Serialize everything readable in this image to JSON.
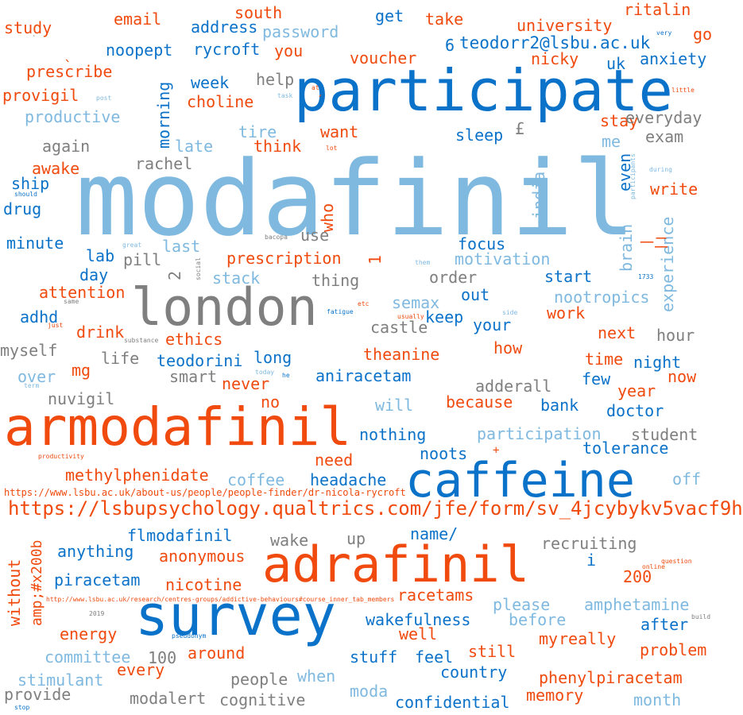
{
  "palette": {
    "light_blue": "#7fb9e0",
    "dark_blue": "#0b72c9",
    "orange": "#f04a0e",
    "gray": "#7f7f7f"
  },
  "words": [
    "modafinil",
    "participate",
    "armodafinil",
    "adrafinil",
    "survey",
    "caffeine",
    "london",
    "https://lsbupsychology.qualtrics.com/jfe/form/sv_4jcybykv5vacf9h",
    "https://www.lsbu.ac.uk/about-us/people/people-finder/dr-nicola-rycroft",
    "http://www.lsbu.ac.uk/research/centres-groups/addictive-behaviours#course_inner_tab_members",
    "teodorr2@lsbu.ac.uk",
    "study",
    "email",
    "south",
    "get",
    "take",
    "university",
    "ritalin",
    "go",
    "address",
    "password",
    "noopept",
    "rycroft",
    "you",
    "6",
    "voucher",
    "nicky",
    "uk",
    "anxiety",
    "prescribe",
    "provigil",
    "help",
    "week",
    "choline",
    "morning",
    "productive",
    "stay",
    "everyday",
    "tire",
    "want",
    "sleep",
    "£",
    "exam",
    "me",
    "again",
    "late",
    "think",
    "awake",
    "rachel",
    "even",
    "ship",
    "drug",
    "india",
    "write",
    "who",
    "brain",
    "experience",
    "minute",
    "last",
    "use",
    "focus",
    "lab",
    "pill",
    "prescription",
    "1",
    "motivation",
    "day",
    "2",
    "stack",
    "thing",
    "order",
    "start",
    "attention",
    "semax",
    "out",
    "nootropics",
    "work",
    "adhd",
    "keep",
    "castle",
    "your",
    "drink",
    "ethics",
    "next",
    "hour",
    "myself",
    "how",
    "life",
    "teodorini",
    "long",
    "theanine",
    "time",
    "night",
    "mg",
    "smart",
    "never",
    "aniracetam",
    "few",
    "now",
    "over",
    "nuvigil",
    "adderall",
    "year",
    "no",
    "because",
    "will",
    "bank",
    "doctor",
    "nothing",
    "participation",
    "student",
    "need",
    "noots",
    "+",
    "tolerance",
    "methylphenidate",
    "coffee",
    "headache",
    "off",
    "flmodafinil",
    "name/",
    "wake",
    "up",
    "recruiting",
    "anything",
    "without",
    "amp;#x200b",
    "anonymous",
    "i",
    "piracetam",
    "nicotine",
    "200",
    "racetams",
    "please",
    "amphetamine",
    "wakefulness",
    "before",
    "after",
    "energy",
    "well",
    "my",
    "really",
    "committee",
    "100",
    "around",
    "still",
    "problem",
    "every",
    "stuff",
    "feel",
    "stimulant",
    "people",
    "when",
    "country",
    "phenylpiracetam",
    "provide",
    "modalert",
    "cognitive",
    "moda",
    "memory",
    "confidential",
    "month",
    "very",
    "little",
    "post",
    "task",
    "at",
    "lot",
    "during",
    "participants",
    "should",
    "bacopa",
    "great",
    "social",
    "them",
    "1733",
    "same",
    "etc",
    "fatigue",
    "side",
    "just",
    "usually",
    "substance",
    "today",
    "he",
    "term",
    "productivity",
    "online",
    "question",
    "2019",
    "build",
    "pseudonym",
    "stop",
    "̀",
    "́",
    "一二",
    "`"
  ]
}
